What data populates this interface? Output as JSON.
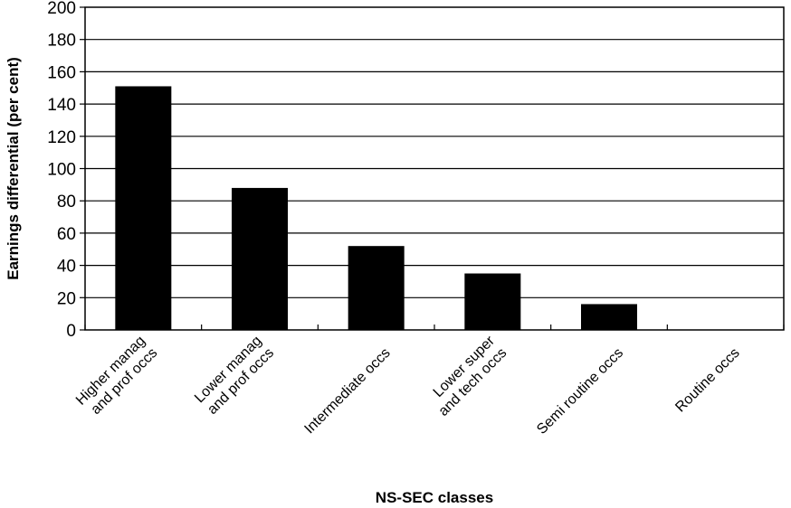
{
  "chart_data": {
    "type": "bar",
    "title": "",
    "xlabel": "NS-SEC classes",
    "ylabel": "Earnings differential (per cent)",
    "ylim": [
      0,
      200
    ],
    "yticks": [
      0,
      20,
      40,
      60,
      80,
      100,
      120,
      140,
      160,
      180,
      200
    ],
    "grid": true,
    "legend": "none",
    "bar_color": "#000000",
    "categories": [
      [
        "Higher manag",
        "and prof occs"
      ],
      [
        "Lower manag",
        "and prof occs"
      ],
      [
        "Intermediate occs"
      ],
      [
        "Lower super",
        "and tech occs"
      ],
      [
        "Semi routine occs"
      ],
      [
        "Routine occs"
      ]
    ],
    "values": [
      151,
      88,
      52,
      35,
      16,
      0
    ]
  }
}
